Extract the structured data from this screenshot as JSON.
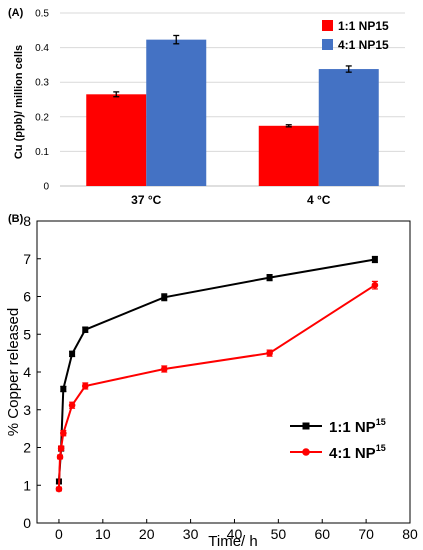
{
  "panels": {
    "a_label": "(A)",
    "b_label": "(B)"
  },
  "chart_data": [
    {
      "type": "bar",
      "ylabel": "Cu (ppb)/ million cells",
      "xlabel": "",
      "categories": [
        "37 °C",
        "4 °C"
      ],
      "ylim": [
        0,
        0.5
      ],
      "yticks": [
        "0",
        "0.1",
        "0.2",
        "0.3",
        "0.4",
        "0.5"
      ],
      "grid": true,
      "legend_position": "top-right",
      "series": [
        {
          "name": "1:1 NP15",
          "color": "#ff0000",
          "values": [
            0.265,
            0.174
          ],
          "errors": [
            0.007,
            0.003
          ]
        },
        {
          "name": "4:1 NP15",
          "color": "#4472c4",
          "values": [
            0.423,
            0.338
          ],
          "errors": [
            0.012,
            0.009
          ]
        }
      ]
    },
    {
      "type": "line",
      "ylabel": "% Copper released",
      "xlabel": "Time/ h",
      "xlim": [
        -5,
        80
      ],
      "ylim": [
        0,
        8
      ],
      "xticks": [
        "0",
        "10",
        "20",
        "30",
        "40",
        "50",
        "60",
        "70",
        "80"
      ],
      "yticks": [
        "0",
        "1",
        "2",
        "3",
        "4",
        "5",
        "6",
        "7",
        "8"
      ],
      "grid": false,
      "legend_position": "bottom-right",
      "series": [
        {
          "name_main": "1:1 NP",
          "name_sup": "15",
          "color": "#000000",
          "marker": "square",
          "x": [
            0,
            0.5,
            1,
            3,
            6,
            24,
            48,
            72
          ],
          "y": [
            1.1,
            1.97,
            3.55,
            4.48,
            5.12,
            5.98,
            6.5,
            6.98
          ],
          "errors": [
            0.06,
            0.06,
            0.07,
            0.07,
            0.07,
            0.09,
            0.08,
            0.08
          ]
        },
        {
          "name_main": "4:1 NP",
          "name_sup": "15",
          "color": "#ff0000",
          "marker": "circle",
          "x": [
            0,
            0.25,
            0.5,
            1,
            3,
            6,
            24,
            48,
            72
          ],
          "y": [
            0.9,
            1.75,
            1.98,
            2.38,
            3.12,
            3.63,
            4.08,
            4.5,
            6.3
          ],
          "errors": [
            0.05,
            0.05,
            0.06,
            0.07,
            0.08,
            0.08,
            0.08,
            0.08,
            0.1
          ]
        }
      ]
    }
  ]
}
